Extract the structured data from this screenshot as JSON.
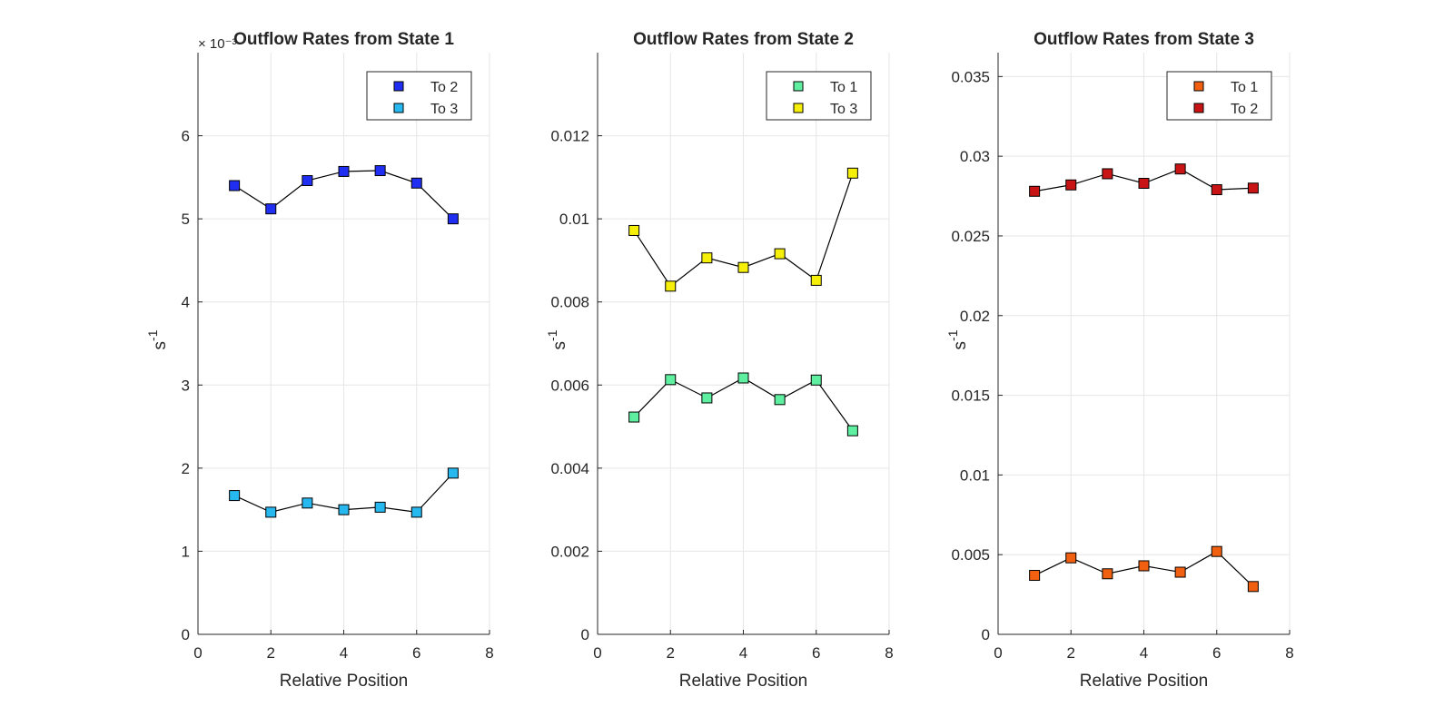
{
  "chart_data": [
    {
      "type": "line",
      "title": "Outflow Rates from State 1",
      "xlabel": "Relative Position",
      "ylabel_base": "s",
      "ylabel_exp": "-1",
      "exponent_label": "× 10⁻³",
      "grid": true,
      "legend_position": "top-right",
      "xlim": [
        0,
        8
      ],
      "ylim": [
        0,
        0.007
      ],
      "xticks": [
        0,
        2,
        4,
        6,
        8
      ],
      "xtick_labels": [
        "0",
        "2",
        "4",
        "6",
        "8"
      ],
      "yticks": [
        0,
        0.001,
        0.002,
        0.003,
        0.004,
        0.005,
        0.006
      ],
      "ytick_labels": [
        "0",
        "1",
        "2",
        "3",
        "4",
        "5",
        "6"
      ],
      "x": [
        1,
        2,
        3,
        4,
        5,
        6,
        7
      ],
      "series": [
        {
          "name": "To 2",
          "color": "#1f2ef0",
          "values": [
            0.0054,
            0.00512,
            0.00546,
            0.00557,
            0.00558,
            0.00543,
            0.005
          ]
        },
        {
          "name": "To 3",
          "color": "#27b8f0",
          "values": [
            0.00167,
            0.00147,
            0.00158,
            0.0015,
            0.00153,
            0.00147,
            0.00194
          ]
        }
      ]
    },
    {
      "type": "line",
      "title": "Outflow Rates from State 2",
      "xlabel": "Relative Position",
      "ylabel_base": "s",
      "ylabel_exp": "-1",
      "grid": true,
      "legend_position": "top-right",
      "xlim": [
        0,
        8
      ],
      "ylim": [
        0,
        0.014
      ],
      "xticks": [
        0,
        2,
        4,
        6,
        8
      ],
      "xtick_labels": [
        "0",
        "2",
        "4",
        "6",
        "8"
      ],
      "yticks": [
        0,
        0.002,
        0.004,
        0.006,
        0.008,
        0.01,
        0.012
      ],
      "ytick_labels": [
        "0",
        "0.002",
        "0.004",
        "0.006",
        "0.008",
        "0.01",
        "0.012"
      ],
      "x": [
        1,
        2,
        3,
        4,
        5,
        6,
        7
      ],
      "series": [
        {
          "name": "To 1",
          "color": "#5ef0a0",
          "values": [
            0.00523,
            0.00613,
            0.00569,
            0.00617,
            0.00565,
            0.00612,
            0.0049
          ]
        },
        {
          "name": "To 3",
          "color": "#f5ef0a",
          "values": [
            0.00972,
            0.00838,
            0.00906,
            0.00883,
            0.00916,
            0.00852,
            0.0111
          ]
        }
      ]
    },
    {
      "type": "line",
      "title": "Outflow Rates from State 3",
      "xlabel": "Relative Position",
      "ylabel_base": "s",
      "ylabel_exp": "-1",
      "grid": true,
      "legend_position": "top-right",
      "xlim": [
        0,
        8
      ],
      "ylim": [
        0,
        0.0365
      ],
      "xticks": [
        0,
        2,
        4,
        6,
        8
      ],
      "xtick_labels": [
        "0",
        "2",
        "4",
        "6",
        "8"
      ],
      "yticks": [
        0,
        0.005,
        0.01,
        0.015,
        0.02,
        0.025,
        0.03,
        0.035
      ],
      "ytick_labels": [
        "0",
        "0.005",
        "0.01",
        "0.015",
        "0.02",
        "0.025",
        "0.03",
        "0.035"
      ],
      "x": [
        1,
        2,
        3,
        4,
        5,
        6,
        7
      ],
      "series": [
        {
          "name": "To 1",
          "color": "#f06010",
          "values": [
            0.0037,
            0.0048,
            0.0038,
            0.0043,
            0.0039,
            0.0052,
            0.003
          ]
        },
        {
          "name": "To 2",
          "color": "#c81414",
          "values": [
            0.0278,
            0.0282,
            0.0289,
            0.0283,
            0.0292,
            0.0279,
            0.028
          ]
        }
      ]
    }
  ]
}
